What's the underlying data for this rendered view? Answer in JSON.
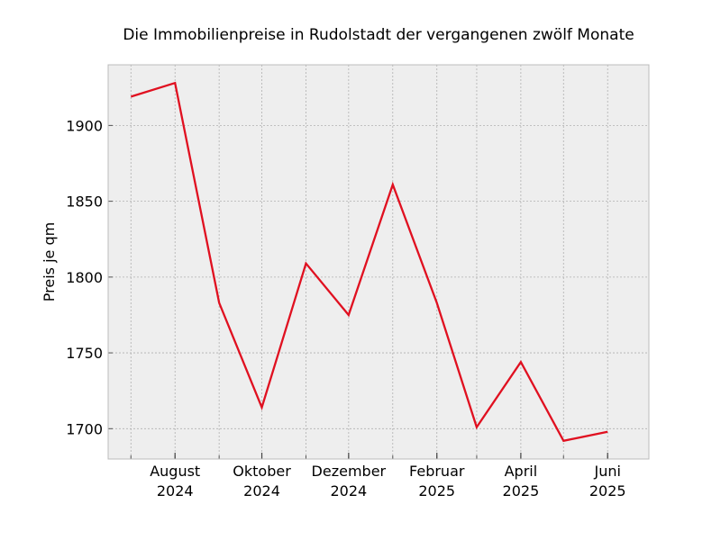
{
  "chart_data": {
    "type": "line",
    "title": "Die Immobilienpreise in Rudolstadt der vergangenen zwölf Monate",
    "xlabel": "",
    "ylabel": "Preis je qm",
    "x": [
      "2024-07",
      "2024-08",
      "2024-09",
      "2024-10",
      "2024-11",
      "2024-12",
      "2025-01",
      "2025-02",
      "2025-03",
      "2025-04",
      "2025-05",
      "2025-06"
    ],
    "series": [
      {
        "values": [
          1919,
          1928,
          1783,
          1714,
          1809,
          1775,
          1861,
          1783,
          1701,
          1744,
          1692,
          1698
        ]
      }
    ],
    "x_ticks": [
      {
        "x": "2024-08",
        "line1": "August",
        "line2": "2024"
      },
      {
        "x": "2024-10",
        "line1": "Oktober",
        "line2": "2024"
      },
      {
        "x": "2024-12",
        "line1": "Dezember",
        "line2": "2024"
      },
      {
        "x": "2025-02",
        "line1": "Februar",
        "line2": "2025"
      },
      {
        "x": "2025-04",
        "line1": "April",
        "line2": "2025"
      },
      {
        "x": "2025-06",
        "line1": "Juni",
        "line2": "2025"
      }
    ],
    "y_ticks": [
      1700,
      1750,
      1800,
      1850,
      1900
    ],
    "ylim": [
      1680,
      1940
    ],
    "xlim": [
      "2024-06-15",
      "2025-06-30"
    ],
    "grid": true,
    "line_color": "#e01020",
    "plot_background": "#eeeeee",
    "grid_color": "#b0b0b0"
  }
}
